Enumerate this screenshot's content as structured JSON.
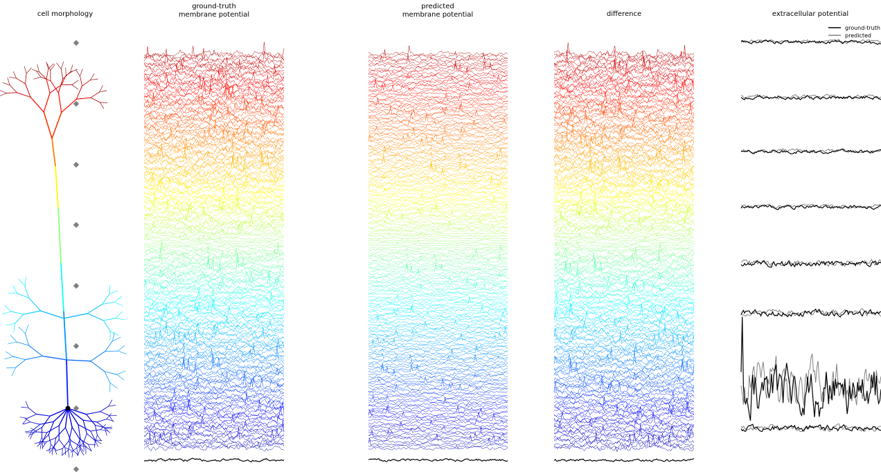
{
  "panels": [
    {
      "title": "cell morphology"
    },
    {
      "title": [
        "ground-truth",
        "membrane potential"
      ]
    },
    {
      "title": [
        "predicted",
        "membrane potential"
      ]
    },
    {
      "title": "difference"
    },
    {
      "title": "extracellular potential"
    }
  ],
  "legend": [
    {
      "label": "ground-truth",
      "color": "#000000"
    },
    {
      "label": "predicted",
      "color": "#808080"
    }
  ]
}
